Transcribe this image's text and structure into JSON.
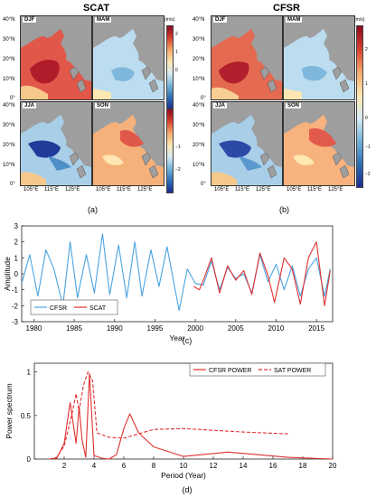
{
  "panel_a": {
    "title": "SCAT",
    "caption": "(a)",
    "seasons": [
      "DJF",
      "MAM",
      "JJA",
      "SON"
    ],
    "lat_labels": [
      "40°N",
      "30°N",
      "20°N",
      "10°N",
      "0°"
    ],
    "lon_labels": [
      "105°E",
      "115°E",
      "125°E"
    ]
  },
  "panel_b": {
    "title": "CFSR",
    "caption": "(b)",
    "seasons": [
      "DJF",
      "MAM",
      "JJA",
      "SON"
    ],
    "lat_labels": [
      "40°N",
      "30°N",
      "20°N",
      "10°N",
      "0°"
    ],
    "lon_labels": [
      "105°E",
      "115°E",
      "125°E"
    ]
  },
  "colorbar": {
    "unit": "(m/s)",
    "ticks": [
      "2",
      "1",
      "0",
      "−1",
      "−2"
    ],
    "colors": [
      "#8b0a1f",
      "#d7402f",
      "#f6a96b",
      "#fde7b2",
      "#d8ecf3",
      "#74b4d9",
      "#2f6fb5",
      "#1b2a8f"
    ]
  },
  "chart_data": [
    {
      "type": "line",
      "caption": "(c)",
      "xlabel": "Year",
      "ylabel": "Amplitude",
      "xlim": [
        1978.5,
        2017
      ],
      "ylim": [
        -3,
        3
      ],
      "xticks": [
        1980,
        1985,
        1990,
        1995,
        2000,
        2005,
        2010,
        2015
      ],
      "yticks": [
        -3,
        -2,
        -1,
        0,
        1,
        2,
        3
      ],
      "legend": "bottom-left",
      "series": [
        {
          "name": "CFSR",
          "color": "#4aa3df",
          "x": [
            1978.5,
            1979.5,
            1980.5,
            1981.5,
            1982.5,
            1983.6,
            1984.5,
            1985.4,
            1986.5,
            1987.5,
            1988.5,
            1989.4,
            1990.5,
            1991.5,
            1992.5,
            1993.4,
            1994.5,
            1995.5,
            1996.5,
            1997.5,
            1998.0,
            1999.0,
            2000.0,
            2001.0,
            2002.0,
            2003.0,
            2004.0,
            2005.0,
            2006.0,
            2007.0,
            2008.0,
            2009.0,
            2010.0,
            2011.0,
            2012.0,
            2013.0,
            2014.0,
            2015.0,
            2016.0,
            2016.7
          ],
          "y": [
            -0.6,
            1.2,
            -1.4,
            1.5,
            0.3,
            -2.0,
            2.0,
            -1.5,
            1.2,
            -1.2,
            2.5,
            -1.3,
            1.8,
            -1.5,
            2.0,
            -1.4,
            1.5,
            -0.8,
            1.7,
            -1.0,
            -2.3,
            0.3,
            -0.6,
            -0.7,
            0.8,
            -1.0,
            0.4,
            -0.3,
            0.0,
            -1.2,
            1.2,
            -0.5,
            0.6,
            -1.0,
            0.5,
            -1.4,
            0.3,
            1.0,
            -1.4,
            0.3
          ]
        },
        {
          "name": "SCAT",
          "color": "#e03030",
          "x": [
            1999.8,
            2000.5,
            2001.0,
            2002.0,
            2003.0,
            2004.0,
            2005.0,
            2006.0,
            2007.0,
            2008.0,
            2009.0,
            2009.8,
            2011.0,
            2012.0,
            2013.0,
            2014.0,
            2015.0,
            2016.0,
            2016.7
          ],
          "y": [
            -0.8,
            -1.0,
            -0.4,
            1.0,
            -1.2,
            0.5,
            -0.4,
            0.2,
            -1.3,
            1.3,
            -0.1,
            -1.8,
            1.0,
            0.3,
            -1.9,
            1.0,
            2.0,
            -2.0,
            0.2
          ]
        }
      ]
    },
    {
      "type": "line",
      "caption": "(d)",
      "xlabel": "Period (Year)",
      "ylabel": "Power spectrum",
      "xlim": [
        0,
        20
      ],
      "ylim": [
        0,
        1.1
      ],
      "xticks": [
        2,
        4,
        6,
        8,
        10,
        12,
        14,
        16,
        18,
        20
      ],
      "yticks": [
        0,
        0.5,
        1
      ],
      "ytick_labels": [
        "0",
        "0.5",
        "1"
      ],
      "legend": "top-right",
      "series": [
        {
          "name": "CFSR POWER",
          "color": "#e03030",
          "dash": "solid",
          "x": [
            1.0,
            1.5,
            2.0,
            2.4,
            2.8,
            3.0,
            3.2,
            3.45,
            3.7,
            4.0,
            4.5,
            5.0,
            5.5,
            6.0,
            6.4,
            7.0,
            8.0,
            10.0,
            13.0,
            17.0,
            20.0
          ],
          "y": [
            0.0,
            0.01,
            0.18,
            0.65,
            0.18,
            0.6,
            0.22,
            0.02,
            0.98,
            0.04,
            0.01,
            0.0,
            0.05,
            0.35,
            0.52,
            0.3,
            0.14,
            0.03,
            0.08,
            0.02,
            0.0
          ]
        },
        {
          "name": "SAT POWER",
          "color": "#e03030",
          "dash": "dashed",
          "x": [
            1.0,
            1.5,
            2.0,
            2.5,
            2.8,
            3.0,
            3.3,
            3.6,
            3.9,
            4.2,
            5.0,
            6.0,
            8.0,
            10.0,
            12.0,
            14.0,
            17.0
          ],
          "y": [
            0.0,
            0.02,
            0.15,
            0.5,
            0.75,
            0.55,
            0.85,
            1.0,
            0.9,
            0.3,
            0.25,
            0.24,
            0.34,
            0.35,
            0.33,
            0.31,
            0.29
          ]
        }
      ]
    }
  ]
}
